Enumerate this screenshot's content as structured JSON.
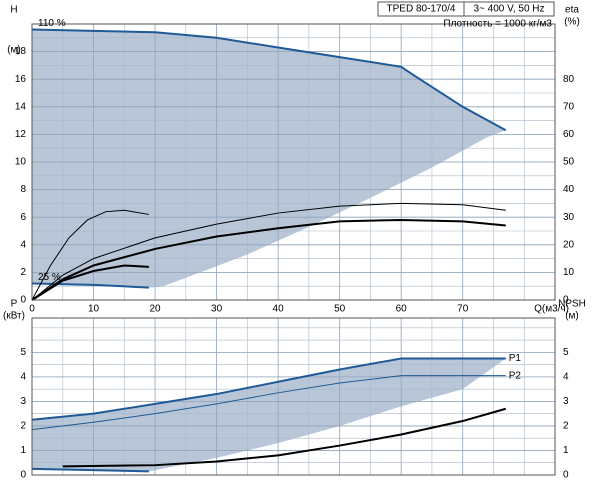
{
  "chart_data": [
    {
      "type": "line",
      "title": "TPED 80-170/4",
      "subtitle": "3~ 400 V, 50 Hz",
      "annotations": [
        "Плотность = 1000 кг/м3"
      ],
      "ylabel": [
        "H",
        "(м)"
      ],
      "y2label": [
        "eta",
        "(%)"
      ],
      "xlabel": "Q(м3/ч)",
      "xlim": [
        0,
        85
      ],
      "xticks": [
        0,
        10,
        20,
        30,
        40,
        50,
        60,
        70
      ],
      "xtick_labels": true,
      "ylim": [
        0,
        20
      ],
      "yticks": [
        0,
        2,
        4,
        6,
        8,
        10,
        12,
        14,
        16,
        18
      ],
      "y2lim": [
        0,
        100
      ],
      "y2ticks": [
        0,
        10,
        20,
        30,
        40,
        50,
        60,
        70,
        80
      ],
      "grid": true,
      "minor_grid": true,
      "area": {
        "color": "#b8c6d8",
        "x": [
          0,
          10,
          20,
          30,
          40,
          50,
          60,
          62,
          70,
          77,
          74,
          65,
          55,
          45,
          35,
          25,
          21,
          19,
          10,
          0
        ],
        "values": [
          19.6,
          19.5,
          19.4,
          19.0,
          18.3,
          17.6,
          16.9,
          16.3,
          14,
          12.3,
          11.8,
          9.6,
          7.4,
          5.3,
          3.3,
          1.6,
          0.95,
          0.9,
          1.1,
          1.2
        ]
      },
      "series": [
        {
          "name": "110 %",
          "color": "#1f5a96",
          "width": 2,
          "x": [
            0,
            10,
            20,
            30,
            40,
            50,
            60,
            62,
            70,
            77
          ],
          "values": [
            19.6,
            19.5,
            19.4,
            19.0,
            18.3,
            17.6,
            16.9,
            16.3,
            14,
            12.3
          ]
        },
        {
          "name": "25 %",
          "color": "#1f5a96",
          "width": 2,
          "x": [
            0,
            10,
            19
          ],
          "values": [
            1.2,
            1.1,
            0.9
          ]
        },
        {
          "color": "#000000",
          "width": 1,
          "x": [
            0,
            5,
            10,
            20,
            30,
            40,
            50,
            60,
            70,
            77
          ],
          "values": [
            0,
            1.8,
            3,
            4.5,
            5.5,
            6.3,
            6.8,
            7.0,
            6.9,
            6.5
          ]
        },
        {
          "color": "#000000",
          "width": 2,
          "x": [
            0,
            5,
            10,
            20,
            30,
            40,
            50,
            60,
            70,
            77
          ],
          "values": [
            0,
            1.5,
            2.5,
            3.7,
            4.6,
            5.2,
            5.7,
            5.8,
            5.7,
            5.4
          ]
        },
        {
          "color": "#000000",
          "width": 1,
          "x": [
            0,
            3,
            6,
            9,
            12,
            15,
            19
          ],
          "values": [
            0,
            2.5,
            4.5,
            5.8,
            6.4,
            6.5,
            6.2
          ]
        },
        {
          "color": "#000000",
          "width": 2,
          "x": [
            0,
            5,
            10,
            15,
            19
          ],
          "values": [
            0,
            1.4,
            2.1,
            2.5,
            2.4
          ]
        }
      ]
    },
    {
      "type": "line",
      "ylabel": [
        "P",
        "(кВт)"
      ],
      "y2label": [
        "NPSH",
        "(м)"
      ],
      "xlim": [
        0,
        85
      ],
      "xticks": [
        0,
        10,
        20,
        30,
        40,
        50,
        60,
        70
      ],
      "xtick_labels": false,
      "ylim": [
        0,
        6.4
      ],
      "yticks": [
        0,
        1,
        2,
        3,
        4,
        5
      ],
      "y2lim": [
        0,
        6.4
      ],
      "y2ticks": [
        0,
        1,
        2,
        3,
        4,
        5
      ],
      "grid": true,
      "minor_grid": true,
      "area": {
        "color": "#b8c6d8",
        "x": [
          0,
          10,
          20,
          30,
          40,
          50,
          60,
          70,
          77,
          70,
          60,
          50,
          40,
          30,
          19,
          10,
          0
        ],
        "values": [
          2.25,
          2.5,
          2.9,
          3.3,
          3.8,
          4.3,
          4.75,
          4.75,
          4.75,
          3.5,
          2.8,
          2.0,
          1.3,
          0.7,
          0.15,
          0.2,
          0.25
        ]
      },
      "series": [
        {
          "name": "P1",
          "color": "#1f5a96",
          "width": 2,
          "x": [
            0,
            10,
            20,
            30,
            40,
            50,
            60,
            70,
            77
          ],
          "values": [
            2.25,
            2.5,
            2.9,
            3.3,
            3.8,
            4.3,
            4.75,
            4.75,
            4.75
          ]
        },
        {
          "name": "P2",
          "color": "#1f5a96",
          "width": 1,
          "x": [
            0,
            10,
            20,
            30,
            40,
            50,
            60,
            70,
            77
          ],
          "values": [
            1.85,
            2.15,
            2.5,
            2.9,
            3.35,
            3.75,
            4.05,
            4.05,
            4.05
          ]
        },
        {
          "color": "#1f5a96",
          "width": 2,
          "x": [
            0,
            10,
            19
          ],
          "values": [
            0.25,
            0.2,
            0.15
          ]
        },
        {
          "color": "#000000",
          "width": 2,
          "axis": "y2",
          "x": [
            5,
            20,
            30,
            40,
            50,
            60,
            70,
            77
          ],
          "values": [
            0.35,
            0.4,
            0.55,
            0.8,
            1.2,
            1.65,
            2.2,
            2.7
          ]
        }
      ]
    }
  ]
}
